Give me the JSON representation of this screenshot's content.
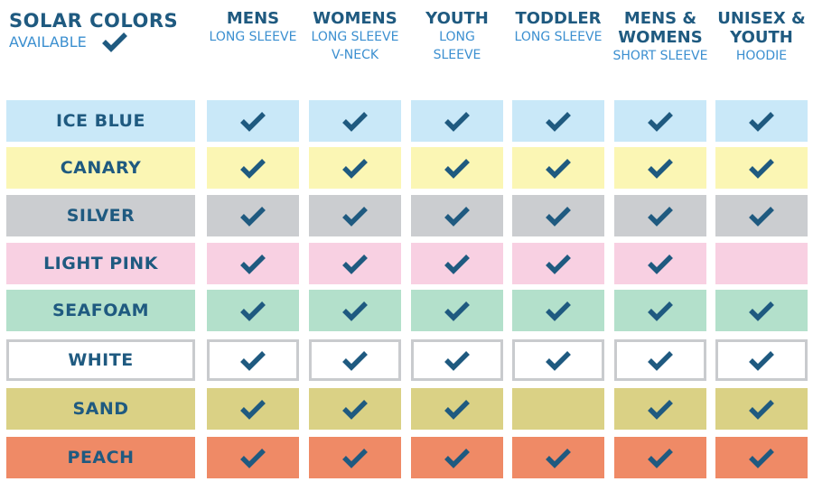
{
  "title": "SOLAR COLORS",
  "subtitle": "AVAILABLE",
  "check_icon": "checkmark-icon",
  "colors": {
    "check": "#1f5a80",
    "text_dark": "#1f5a80",
    "text_light": "#3b8fd0",
    "white_border": "#c9cbce"
  },
  "columns": [
    {
      "main": "MENS",
      "sub": "LONG SLEEVE"
    },
    {
      "main": "WOMENS",
      "sub": "LONG SLEEVE V-NECK"
    },
    {
      "main": "YOUTH",
      "sub": "LONG SLEEVE"
    },
    {
      "main": "TODDLER",
      "sub": "LONG SLEEVE"
    },
    {
      "main": "MENS & WOMENS",
      "sub": "SHORT SLEEVE"
    },
    {
      "main": "UNISEX & YOUTH",
      "sub": "HOODIE"
    }
  ],
  "rows": [
    {
      "label": "ICE BLUE",
      "color": "#c9e8f8",
      "avail": [
        true,
        true,
        true,
        true,
        true,
        true
      ]
    },
    {
      "label": "CANARY",
      "color": "#fbf6b4",
      "avail": [
        true,
        true,
        true,
        true,
        true,
        true
      ]
    },
    {
      "label": "SILVER",
      "color": "#cbcdd0",
      "avail": [
        true,
        true,
        true,
        true,
        true,
        true
      ]
    },
    {
      "label": "LIGHT PINK",
      "color": "#f8d0e2",
      "avail": [
        true,
        true,
        true,
        true,
        true,
        false
      ]
    },
    {
      "label": "SEAFOAM",
      "color": "#b3e0cb",
      "avail": [
        true,
        true,
        true,
        true,
        true,
        true
      ]
    },
    {
      "label": "WHITE",
      "color": "#ffffff",
      "avail": [
        true,
        true,
        true,
        true,
        true,
        true
      ]
    },
    {
      "label": "SAND",
      "color": "#dad185",
      "avail": [
        true,
        true,
        true,
        false,
        true,
        true
      ]
    },
    {
      "label": "PEACH",
      "color": "#ef8a66",
      "avail": [
        true,
        true,
        true,
        true,
        true,
        true
      ]
    }
  ]
}
